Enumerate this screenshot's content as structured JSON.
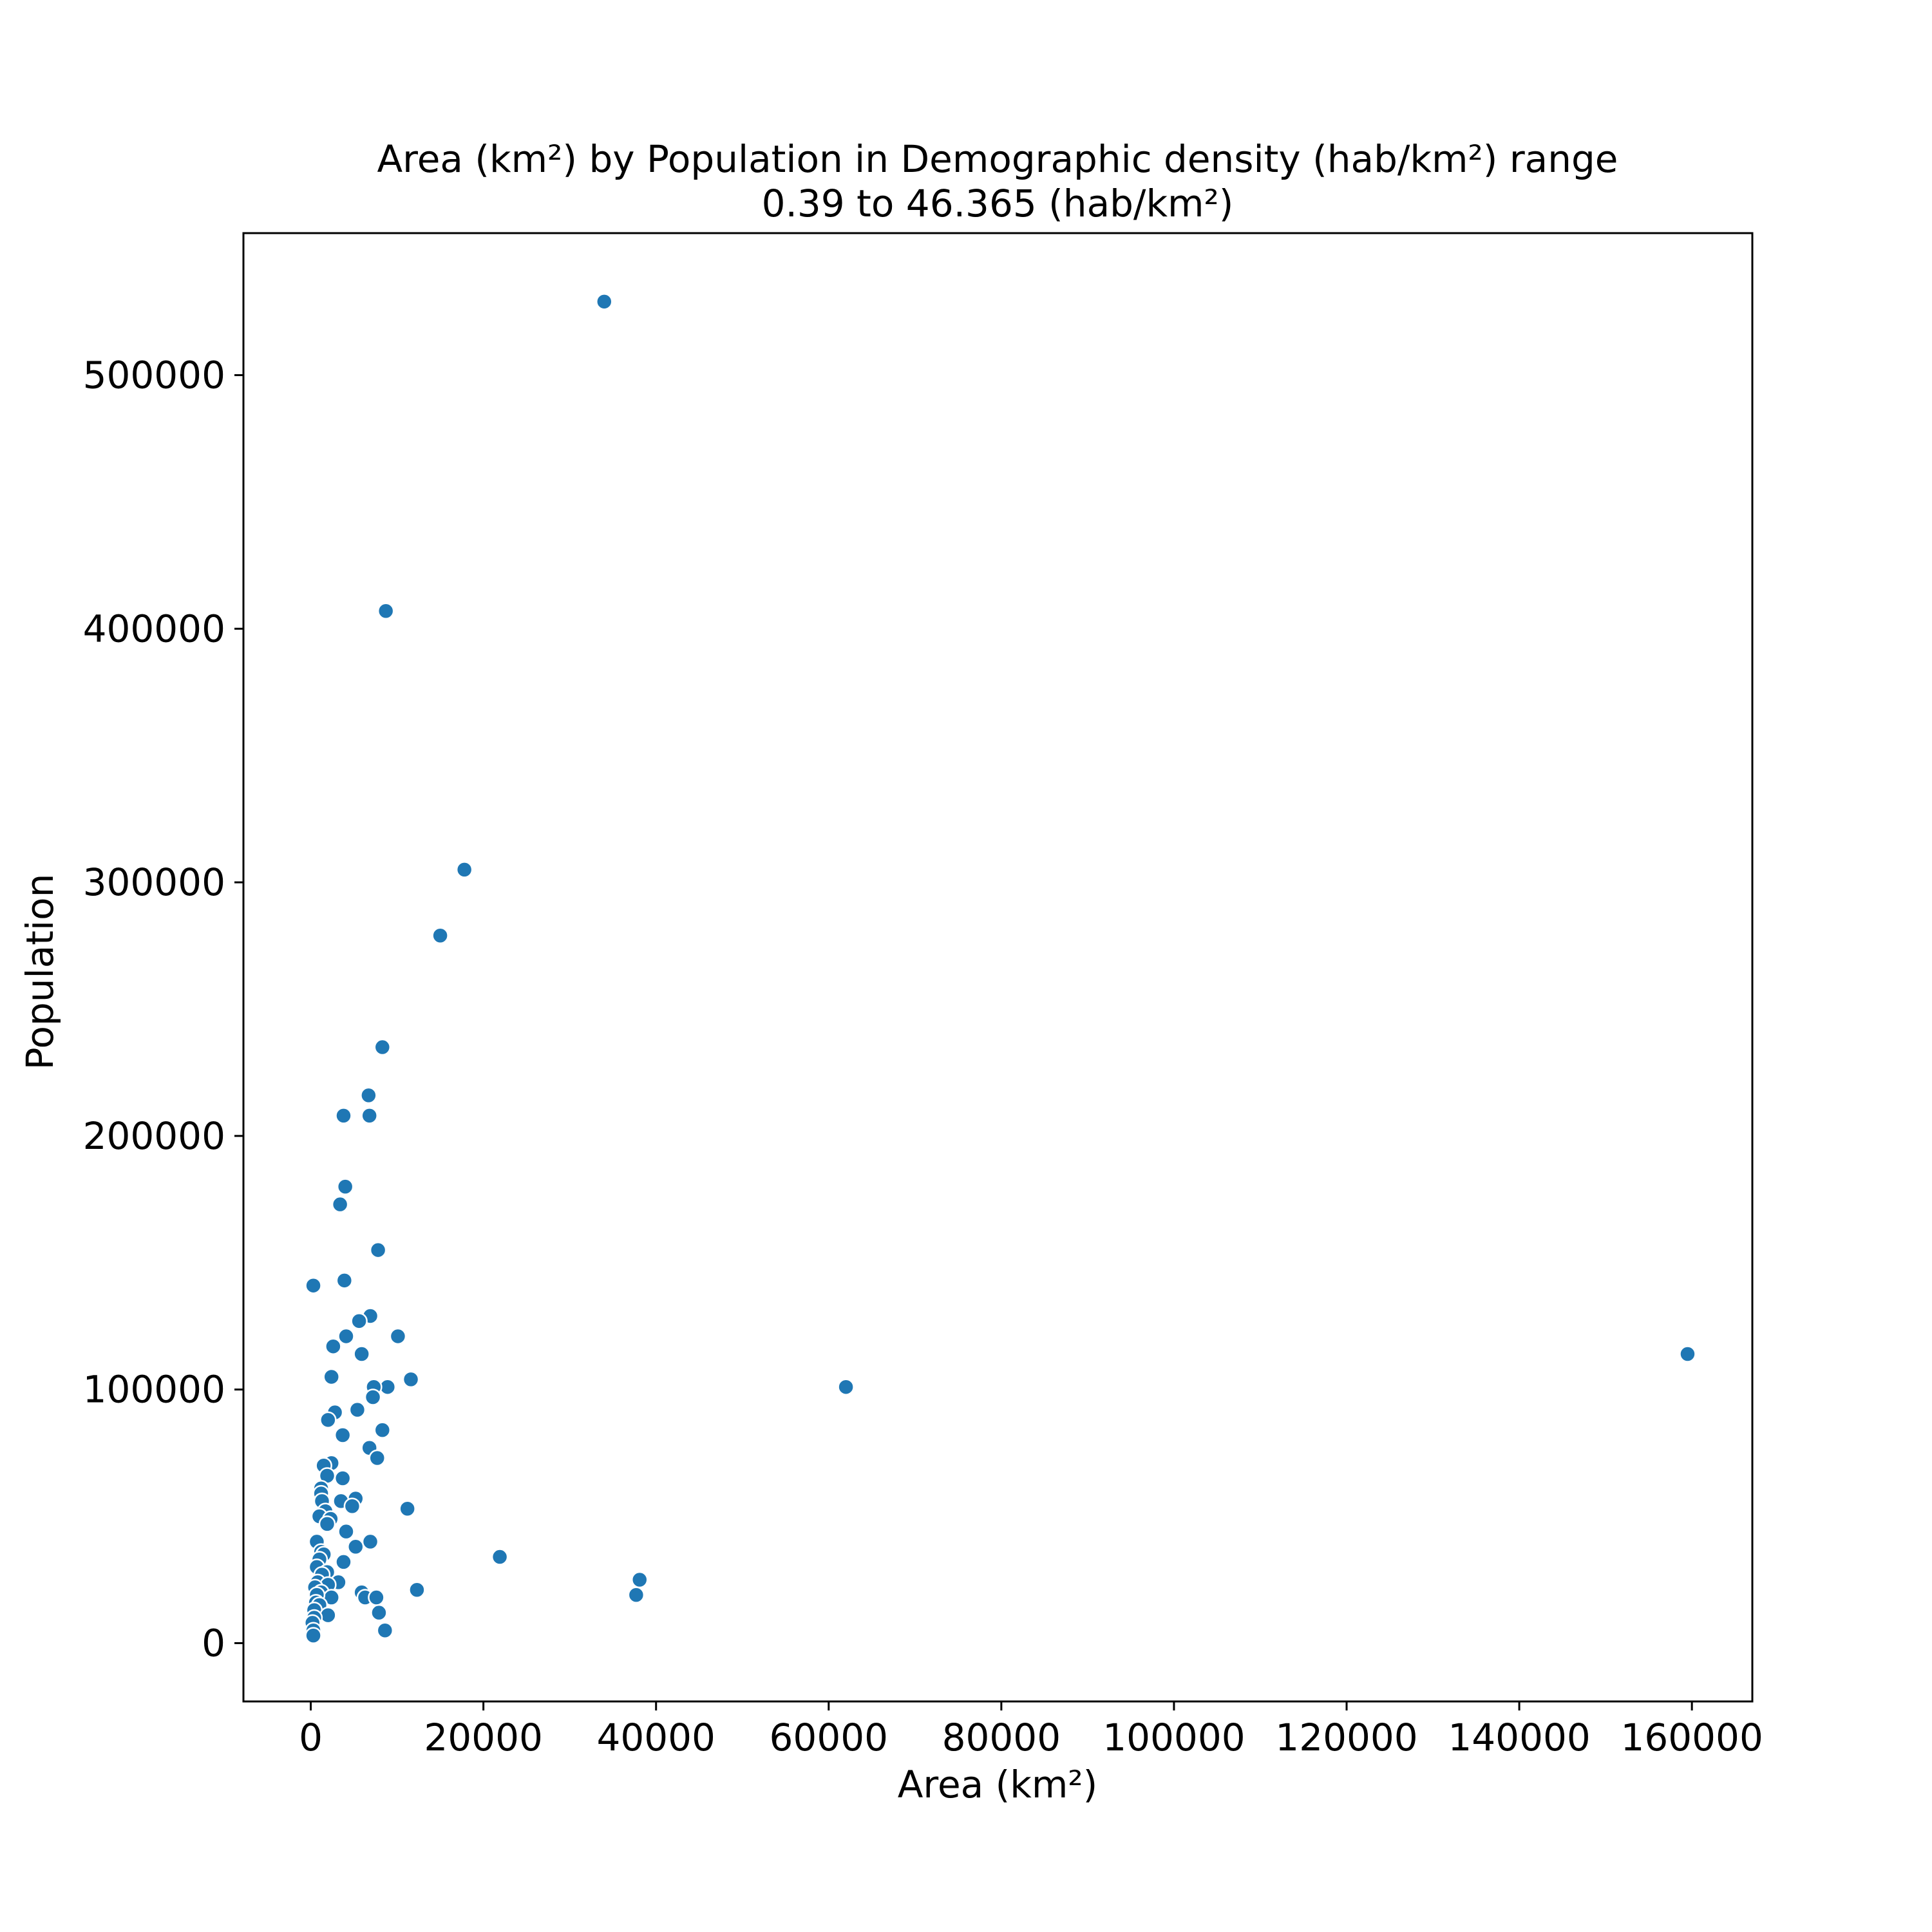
{
  "chart_data": {
    "type": "scatter",
    "title_line1": "Area (km²) by Population in Demographic density (hab/km²) range",
    "title_line2": "0.39 to 46.365 (hab/km²)",
    "xlabel": "Area (km²)",
    "ylabel": "Population",
    "xlim": [
      -7800,
      167000
    ],
    "ylim": [
      -23000,
      556000
    ],
    "xticks": [
      0,
      20000,
      40000,
      60000,
      80000,
      100000,
      120000,
      140000,
      160000
    ],
    "yticks": [
      0,
      100000,
      200000,
      300000,
      400000,
      500000
    ],
    "grid": false,
    "color": "#1f77b4",
    "points": [
      [
        34000,
        529000
      ],
      [
        8700,
        407000
      ],
      [
        17800,
        305000
      ],
      [
        15000,
        279000
      ],
      [
        8300,
        235000
      ],
      [
        6700,
        216000
      ],
      [
        3800,
        208000
      ],
      [
        6800,
        208000
      ],
      [
        4000,
        180000
      ],
      [
        3400,
        173000
      ],
      [
        7800,
        155000
      ],
      [
        300,
        141000
      ],
      [
        3900,
        143000
      ],
      [
        6900,
        129000
      ],
      [
        5600,
        127000
      ],
      [
        10100,
        121000
      ],
      [
        4100,
        121000
      ],
      [
        2600,
        117000
      ],
      [
        5900,
        114000
      ],
      [
        159500,
        114000
      ],
      [
        11600,
        104000
      ],
      [
        2400,
        105000
      ],
      [
        62000,
        101000
      ],
      [
        8900,
        101000
      ],
      [
        7300,
        101000
      ],
      [
        7200,
        97000
      ],
      [
        2800,
        91000
      ],
      [
        5400,
        92000
      ],
      [
        2000,
        88000
      ],
      [
        8300,
        84000
      ],
      [
        3700,
        82000
      ],
      [
        6800,
        77000
      ],
      [
        7700,
        73000
      ],
      [
        2400,
        71000
      ],
      [
        1500,
        70000
      ],
      [
        1900,
        66000
      ],
      [
        3700,
        65000
      ],
      [
        1200,
        61000
      ],
      [
        1200,
        59000
      ],
      [
        5200,
        57000
      ],
      [
        3500,
        56000
      ],
      [
        1300,
        56000
      ],
      [
        4800,
        54000
      ],
      [
        11200,
        53000
      ],
      [
        1700,
        52000
      ],
      [
        1000,
        50000
      ],
      [
        2300,
        49000
      ],
      [
        1900,
        47000
      ],
      [
        4100,
        44000
      ],
      [
        700,
        40000
      ],
      [
        6900,
        40000
      ],
      [
        5200,
        38000
      ],
      [
        1200,
        36000
      ],
      [
        1500,
        35000
      ],
      [
        21900,
        34000
      ],
      [
        1000,
        33000
      ],
      [
        3800,
        32000
      ],
      [
        700,
        30000
      ],
      [
        1900,
        28000
      ],
      [
        1300,
        27000
      ],
      [
        38100,
        25000
      ],
      [
        800,
        24000
      ],
      [
        3200,
        24000
      ],
      [
        2000,
        23000
      ],
      [
        500,
        22000
      ],
      [
        12300,
        21000
      ],
      [
        5900,
        20000
      ],
      [
        1200,
        20000
      ],
      [
        37700,
        19000
      ],
      [
        6300,
        18000
      ],
      [
        7600,
        18000
      ],
      [
        2400,
        18000
      ],
      [
        700,
        19000
      ],
      [
        600,
        16000
      ],
      [
        1000,
        15000
      ],
      [
        400,
        13000
      ],
      [
        7900,
        12000
      ],
      [
        2000,
        11000
      ],
      [
        400,
        10000
      ],
      [
        200,
        8000
      ],
      [
        300,
        5000
      ],
      [
        8600,
        5000
      ],
      [
        300,
        3000
      ]
    ]
  }
}
